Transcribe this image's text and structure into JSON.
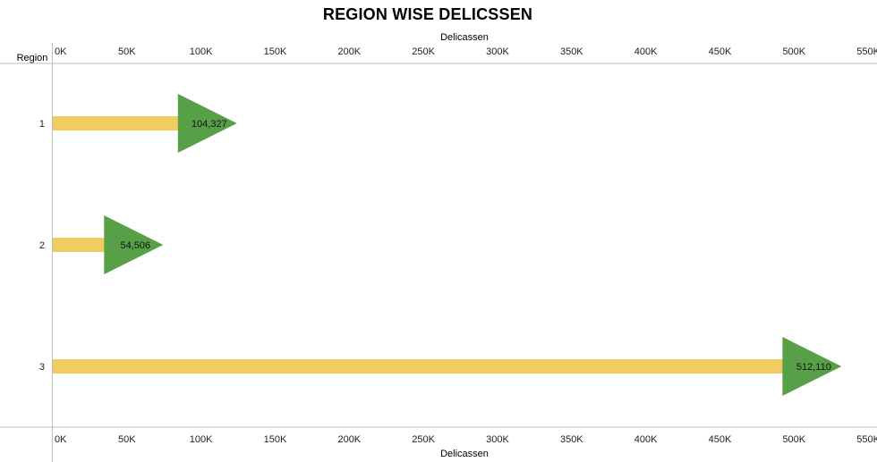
{
  "chart_data": {
    "type": "bar",
    "title": "REGION WISE DELICSSEN",
    "xlabel": "Delicassen",
    "ylabel": "Region",
    "categories": [
      "1",
      "2",
      "3"
    ],
    "values": [
      104327,
      54506,
      512110
    ],
    "data_labels": [
      "104,327",
      "54,506",
      "512,110"
    ],
    "xlim": [
      0,
      560000
    ],
    "x_ticks": [
      0,
      50000,
      100000,
      150000,
      200000,
      250000,
      300000,
      350000,
      400000,
      450000,
      500000,
      550000
    ],
    "x_tick_labels": [
      "0K",
      "50K",
      "100K",
      "150K",
      "200K",
      "250K",
      "300K",
      "350K",
      "400K",
      "450K",
      "500K",
      "550K"
    ],
    "axis_position": "top-and-bottom",
    "grid": false,
    "legend": "none",
    "colors": {
      "bar": "#f1cc60",
      "marker": "#57a048",
      "axis": "#bdbdbd"
    },
    "marker_shape": "right-triangle"
  }
}
